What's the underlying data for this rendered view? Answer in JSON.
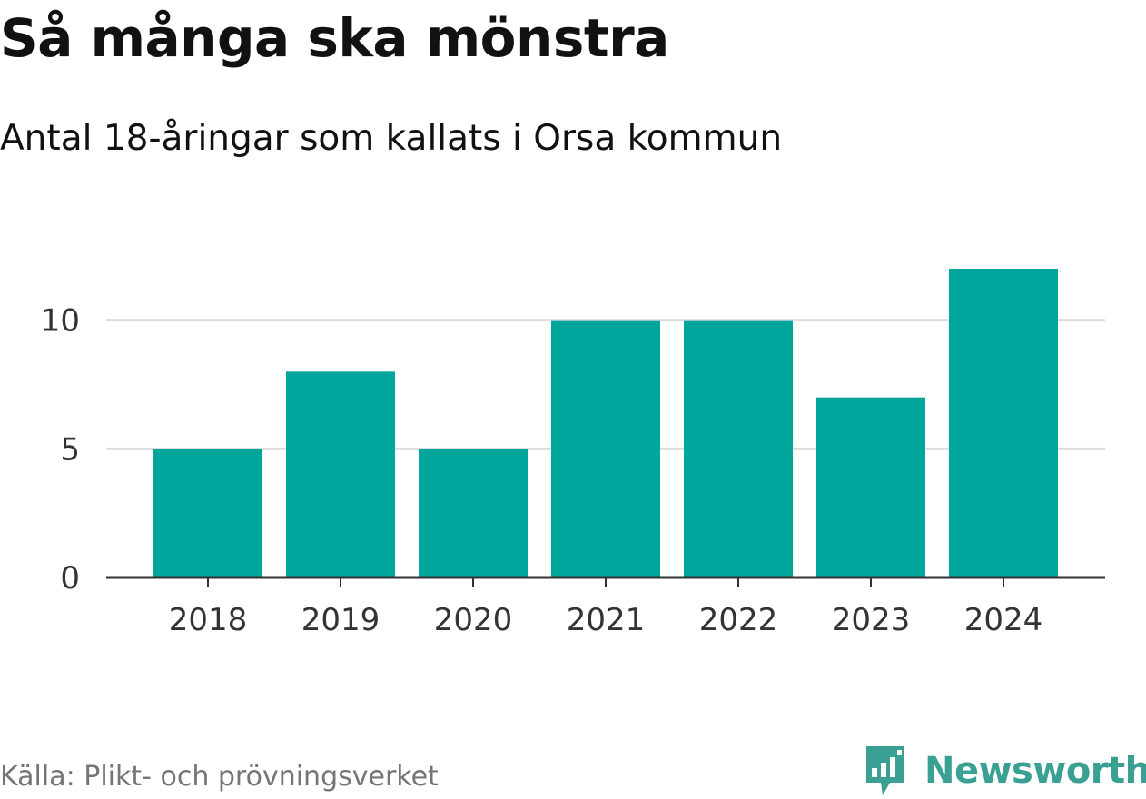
{
  "header": {
    "title": "Så många ska mönstra",
    "subtitle": "Antal 18-åringar som kallats i Orsa kommun"
  },
  "footer": {
    "source": "Källa: Plikt- och prövningsverket",
    "brand": "Newsworthy",
    "brand_icon": "bar-chart-speech-bubble-icon"
  },
  "colors": {
    "bar": "#00a59b",
    "grid": "#dddddd",
    "axis": "#333333",
    "brand": "#3aa093"
  },
  "chart_data": {
    "type": "bar",
    "title": "Så många ska mönstra",
    "subtitle": "Antal 18-åringar som kallats i Orsa kommun",
    "categories": [
      "2018",
      "2019",
      "2020",
      "2021",
      "2022",
      "2023",
      "2024"
    ],
    "values": [
      5,
      8,
      5,
      10,
      10,
      7,
      12
    ],
    "yticks": [
      0,
      5,
      10
    ],
    "ylim": [
      0,
      12
    ],
    "xlabel": "",
    "ylabel": "",
    "grid": true,
    "legend": "none"
  }
}
